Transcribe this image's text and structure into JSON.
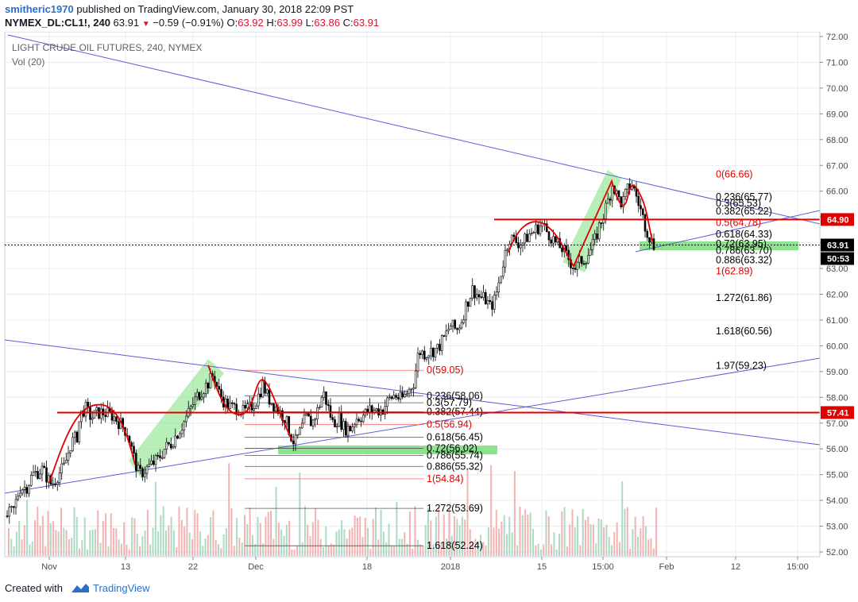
{
  "header": {
    "author": "smitheric1970",
    "published_text": "published on TradingView.com, January 30, 2018 22:09 PST",
    "symbol": "NYMEX_DL:CL1!, 240",
    "last": "63.91",
    "change": "−0.59 (−0.91%)",
    "o_label": "O:",
    "o_value": "63.92",
    "h_label": "H:",
    "h_value": "63.99",
    "l_label": "L:",
    "l_value": "63.86",
    "c_label": "C:",
    "c_value": "63.91"
  },
  "footer": {
    "created_with": "Created with",
    "brand": "TradingView"
  },
  "colors": {
    "up": "#000000",
    "fill_down": "#ffffff",
    "red_line": "#e00000",
    "blue_line": "#5b5fd6",
    "green_zone": "#7ee07e",
    "vol_up": "#9fd4b9",
    "vol_down": "#f2a6a6",
    "grid": "#e9ecef"
  },
  "chart_data": {
    "type": "candlestick",
    "title": "LIGHT CRUDE OIL FUTURES, 240, NYMEX",
    "volume_label": "Vol (20)",
    "y_range": [
      51.5,
      72.0
    ],
    "y_ticks": [
      "72.00",
      "71.00",
      "70.00",
      "69.00",
      "68.00",
      "67.00",
      "66.00",
      "65.00",
      "64.00",
      "63.00",
      "62.00",
      "61.00",
      "60.00",
      "59.00",
      "58.00",
      "57.00",
      "56.00",
      "55.00",
      "54.00",
      "53.00",
      "52.00"
    ],
    "x_ticks": [
      "Nov",
      "13",
      "22",
      "Dec",
      "18",
      "2018",
      "15",
      "15:00",
      "Feb",
      "12",
      "15:00"
    ],
    "last_price": "63.91",
    "countdown": "50:53",
    "price_levels": [
      {
        "label": "64.90",
        "value": 64.9
      },
      {
        "label": "57.41",
        "value": 57.41
      }
    ],
    "fib_retracement_1": {
      "levels": [
        {
          "label": "0(59.05)",
          "value": 59.05,
          "color": "red"
        },
        {
          "label": "0.236(58.06)",
          "value": 58.06,
          "color": "black"
        },
        {
          "label": "0.3(57.79)",
          "value": 57.79,
          "color": "black"
        },
        {
          "label": "0.382(57.44)",
          "value": 57.44,
          "color": "black"
        },
        {
          "label": "0.5(56.94)",
          "value": 56.94,
          "color": "red"
        },
        {
          "label": "0.618(56.45)",
          "value": 56.45,
          "color": "black"
        },
        {
          "label": "0.72(56.02)",
          "value": 56.02,
          "color": "black"
        },
        {
          "label": "0.786(55.74)",
          "value": 55.74,
          "color": "black"
        },
        {
          "label": "0.886(55.32)",
          "value": 55.32,
          "color": "black"
        },
        {
          "label": "1(54.84)",
          "value": 54.84,
          "color": "red"
        },
        {
          "label": "1.272(53.69)",
          "value": 53.69,
          "color": "black"
        },
        {
          "label": "1.618(52.24)",
          "value": 52.24,
          "color": "black"
        }
      ]
    },
    "fib_retracement_2": {
      "levels": [
        {
          "label": "0(66.66)",
          "value": 66.66,
          "color": "red"
        },
        {
          "label": "0.236(65.77)",
          "value": 65.77,
          "color": "black"
        },
        {
          "label": "0.3(65.53)",
          "value": 65.53,
          "color": "black"
        },
        {
          "label": "0.382(65.22)",
          "value": 65.22,
          "color": "black"
        },
        {
          "label": "0.5(64.78)",
          "value": 64.78,
          "color": "red"
        },
        {
          "label": "0.618(64.33)",
          "value": 64.33,
          "color": "black"
        },
        {
          "label": "0.72(63.95)",
          "value": 63.95,
          "color": "black"
        },
        {
          "label": "0.786(63.70)",
          "value": 63.7,
          "color": "black"
        },
        {
          "label": "0.886(63.32)",
          "value": 63.32,
          "color": "black"
        },
        {
          "label": "1(62.89)",
          "value": 62.89,
          "color": "red"
        },
        {
          "label": "1.272(61.86)",
          "value": 61.86,
          "color": "black"
        },
        {
          "label": "1.618(60.56)",
          "value": 60.56,
          "color": "black"
        },
        {
          "label": "1.97(59.23)",
          "value": 59.23,
          "color": "black"
        }
      ]
    },
    "price_path": [
      [
        0,
        52.6
      ],
      [
        8,
        53.4
      ],
      [
        16,
        53.6
      ],
      [
        24,
        54.5
      ],
      [
        32,
        54.5
      ],
      [
        40,
        55.0
      ],
      [
        52,
        55.2
      ],
      [
        64,
        54.6
      ],
      [
        72,
        55.0
      ],
      [
        80,
        55.3
      ],
      [
        88,
        56.2
      ],
      [
        96,
        56.5
      ],
      [
        100,
        57.3
      ],
      [
        106,
        57.6
      ],
      [
        114,
        57.2
      ],
      [
        122,
        57.4
      ],
      [
        130,
        57.4
      ],
      [
        140,
        57.3
      ],
      [
        150,
        57.0
      ],
      [
        160,
        56.6
      ],
      [
        168,
        55.6
      ],
      [
        174,
        55.0
      ],
      [
        182,
        55.2
      ],
      [
        190,
        55.4
      ],
      [
        198,
        55.6
      ],
      [
        206,
        56.0
      ],
      [
        214,
        56.2
      ],
      [
        222,
        56.6
      ],
      [
        230,
        57.0
      ],
      [
        238,
        57.5
      ],
      [
        246,
        58.0
      ],
      [
        254,
        58.3
      ],
      [
        262,
        58.6
      ],
      [
        268,
        58.9
      ],
      [
        274,
        58.2
      ],
      [
        282,
        57.8
      ],
      [
        290,
        57.6
      ],
      [
        298,
        57.6
      ],
      [
        306,
        57.4
      ],
      [
        314,
        57.6
      ],
      [
        322,
        57.9
      ],
      [
        330,
        58.5
      ],
      [
        336,
        58.0
      ],
      [
        344,
        57.7
      ],
      [
        352,
        57.4
      ],
      [
        358,
        57.2
      ],
      [
        364,
        56.6
      ],
      [
        370,
        56.2
      ],
      [
        376,
        56.6
      ],
      [
        384,
        57.2
      ],
      [
        392,
        57.0
      ],
      [
        400,
        57.6
      ],
      [
        406,
        58.2
      ],
      [
        412,
        57.6
      ],
      [
        418,
        57.0
      ],
      [
        426,
        57.2
      ],
      [
        432,
        56.8
      ],
      [
        440,
        56.8
      ],
      [
        448,
        57.2
      ],
      [
        456,
        57.3
      ],
      [
        464,
        57.5
      ],
      [
        472,
        57.5
      ],
      [
        480,
        57.5
      ],
      [
        488,
        57.9
      ],
      [
        496,
        58.1
      ],
      [
        504,
        57.9
      ],
      [
        512,
        58.2
      ],
      [
        520,
        58.6
      ],
      [
        526,
        59.8
      ],
      [
        534,
        59.7
      ],
      [
        542,
        59.8
      ],
      [
        550,
        59.9
      ],
      [
        558,
        60.3
      ],
      [
        566,
        60.8
      ],
      [
        574,
        60.6
      ],
      [
        580,
        61.0
      ],
      [
        586,
        61.6
      ],
      [
        594,
        62.2
      ],
      [
        602,
        61.9
      ],
      [
        610,
        61.8
      ],
      [
        616,
        61.5
      ],
      [
        622,
        61.8
      ],
      [
        628,
        62.6
      ],
      [
        634,
        63.5
      ],
      [
        640,
        64.2
      ],
      [
        646,
        64.1
      ],
      [
        652,
        64.0
      ],
      [
        658,
        64.0
      ],
      [
        664,
        64.3
      ],
      [
        670,
        64.4
      ],
      [
        676,
        64.6
      ],
      [
        682,
        64.7
      ],
      [
        688,
        64.4
      ],
      [
        694,
        64.2
      ],
      [
        700,
        63.9
      ],
      [
        706,
        63.8
      ],
      [
        712,
        63.5
      ],
      [
        718,
        63.2
      ],
      [
        724,
        63.0
      ],
      [
        730,
        63.3
      ],
      [
        736,
        63.4
      ],
      [
        742,
        63.7
      ],
      [
        748,
        64.1
      ],
      [
        754,
        64.7
      ],
      [
        760,
        65.2
      ],
      [
        766,
        65.8
      ],
      [
        770,
        66.3
      ],
      [
        776,
        65.8
      ],
      [
        782,
        65.5
      ],
      [
        788,
        66.0
      ],
      [
        794,
        66.3
      ],
      [
        800,
        65.8
      ],
      [
        806,
        65.2
      ],
      [
        812,
        64.6
      ],
      [
        818,
        64.1
      ],
      [
        822,
        63.9
      ]
    ]
  }
}
